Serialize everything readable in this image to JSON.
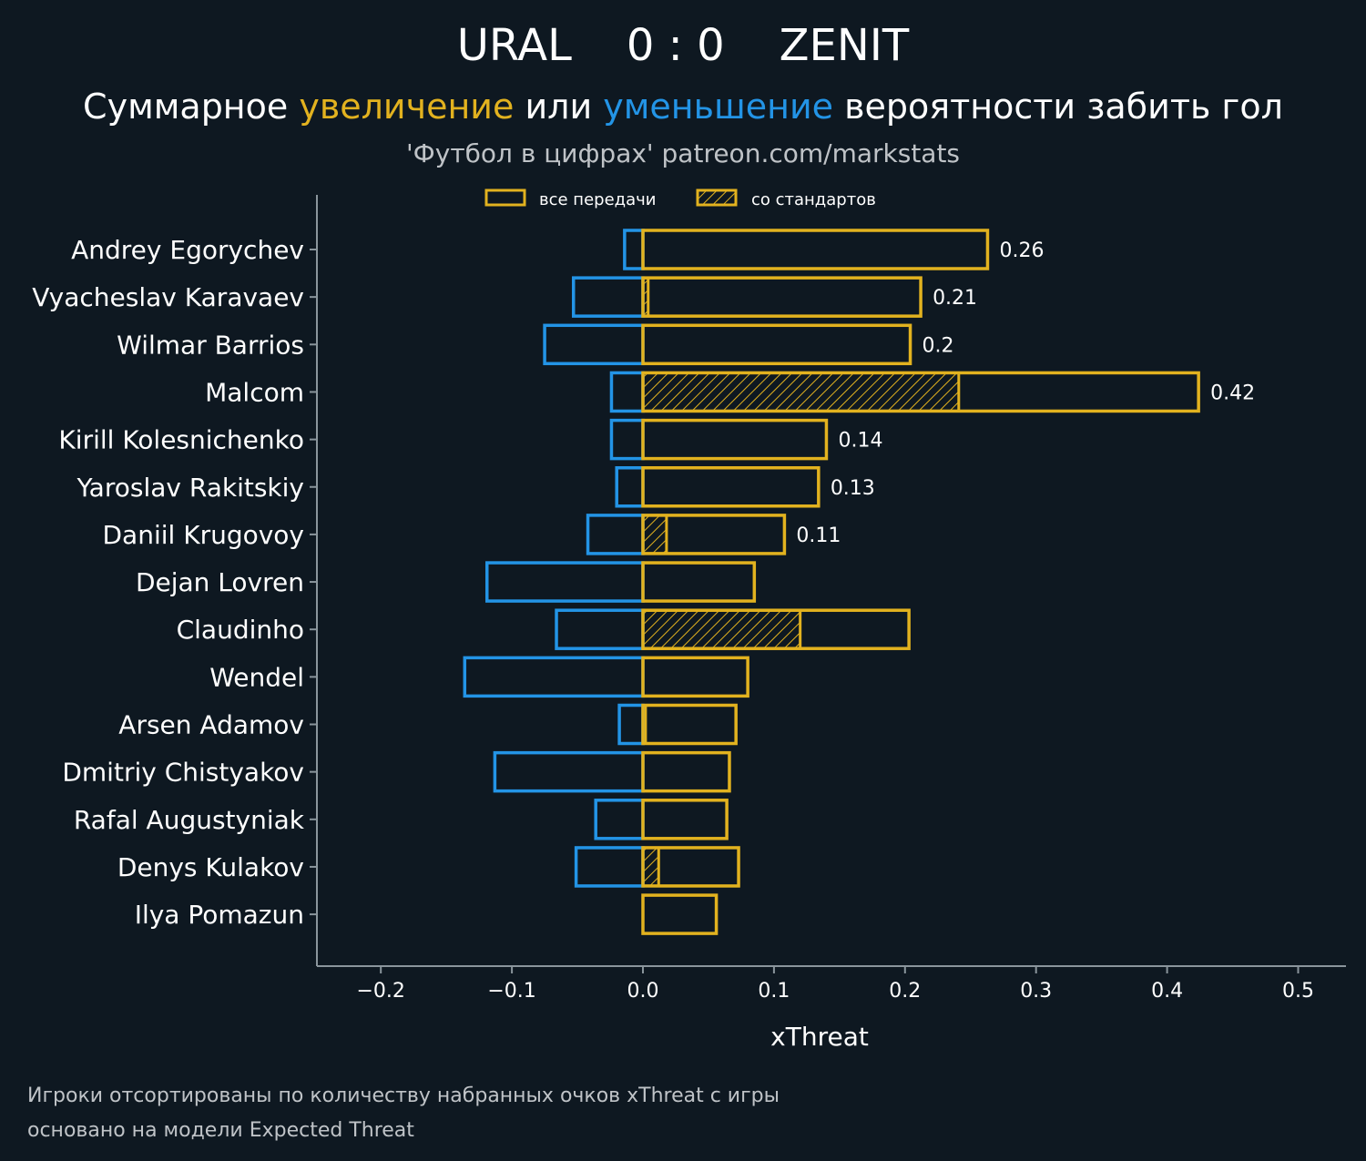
{
  "colors": {
    "background": "#0e1821",
    "increase": "#e2b21f",
    "decrease": "#2394e6",
    "axis": "#8a959c",
    "text": "#ffffff",
    "muted": "#bfc3c7"
  },
  "header": {
    "home_team": "URAL",
    "score": "0 : 0",
    "away_team": "ZENIT",
    "subtitle_part1": "Суммарное ",
    "subtitle_increase": "увеличение",
    "subtitle_part2": " или ",
    "subtitle_decrease": "уменьшение",
    "subtitle_part3": " вероятности забить гол",
    "credit": "'Футбол в цифрах' patreon.com/markstats"
  },
  "footer": {
    "line1": "Игроки отсортированы по количеству набранных очков xThreat с игры",
    "line2": "основано на модели Expected Threat"
  },
  "chart_data": {
    "type": "bar",
    "orientation": "horizontal",
    "xlabel": "xThreat",
    "xlim": [
      -0.25,
      0.535
    ],
    "xticks": [
      -0.2,
      -0.1,
      0.0,
      0.1,
      0.2,
      0.3,
      0.4,
      0.5
    ],
    "xtick_labels": [
      "−0.2",
      "−0.1",
      "0.0",
      "0.1",
      "0.2",
      "0.3",
      "0.4",
      "0.5"
    ],
    "legend": {
      "position": "top",
      "entries": [
        "все передачи",
        "со стандартов"
      ]
    },
    "categories": [
      "Andrey Egorychev",
      "Vyacheslav Karavaev",
      "Wilmar Barrios",
      "Malcom",
      "Kirill Kolesnichenko",
      "Yaroslav Rakitskiy",
      "Daniil Krugovoy",
      "Dejan Lovren",
      "Claudinho",
      "Wendel",
      "Arsen Adamov",
      "Dmitriy Chistyakov",
      "Rafal Augustyniak",
      "Denys Kulakov",
      "Ilya Pomazun"
    ],
    "series": [
      {
        "name": "все передачи (увеличение)",
        "values": [
          0.263,
          0.212,
          0.204,
          0.424,
          0.14,
          0.134,
          0.108,
          0.085,
          0.203,
          0.08,
          0.071,
          0.066,
          0.064,
          0.073,
          0.056
        ]
      },
      {
        "name": "все передачи (уменьшение)",
        "values": [
          -0.014,
          -0.053,
          -0.075,
          -0.024,
          -0.024,
          -0.02,
          -0.042,
          -0.119,
          -0.066,
          -0.136,
          -0.018,
          -0.113,
          -0.036,
          -0.051,
          0.0
        ]
      },
      {
        "name": "со стандартов",
        "values": [
          0.0,
          0.004,
          0.0,
          0.241,
          0.0,
          0.0,
          0.018,
          0.0,
          0.12,
          0.0,
          0.002,
          0.0,
          0.0,
          0.012,
          0.0
        ]
      }
    ],
    "data_labels": [
      "0.26",
      "0.21",
      "0.2",
      "0.42",
      "0.14",
      "0.13",
      "0.11",
      "",
      "",
      "",
      "",
      "",
      "",
      "",
      ""
    ]
  }
}
